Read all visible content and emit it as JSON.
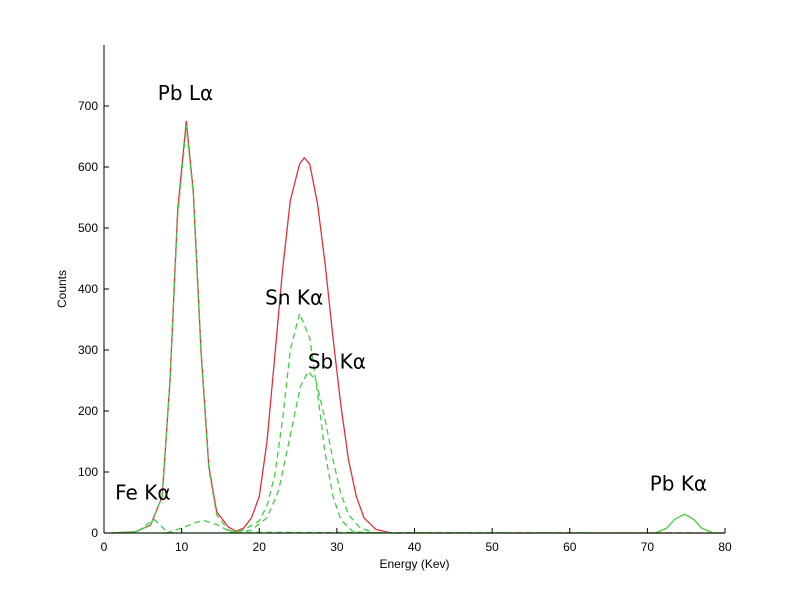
{
  "chart_data": {
    "type": "line",
    "title": "",
    "xlabel": "Energy (Kev)",
    "ylabel": "Counts",
    "xlim": [
      0,
      80
    ],
    "ylim": [
      0,
      800
    ],
    "x_ticks": [
      0,
      10,
      20,
      30,
      40,
      50,
      60,
      70,
      80
    ],
    "y_ticks": [
      0,
      100,
      200,
      300,
      400,
      500,
      600,
      700
    ],
    "grid": false,
    "series": [
      {
        "style": "solid",
        "color": "#e0303a",
        "points": [
          [
            1,
            0
          ],
          [
            4,
            2
          ],
          [
            6,
            13
          ],
          [
            7.5,
            60
          ],
          [
            8.5,
            250
          ],
          [
            9.5,
            530
          ],
          [
            10.6,
            675
          ],
          [
            11.5,
            560
          ],
          [
            12.5,
            300
          ],
          [
            13.5,
            110
          ],
          [
            14.5,
            35
          ],
          [
            16,
            10
          ],
          [
            17,
            3
          ],
          [
            18,
            8
          ],
          [
            19,
            25
          ],
          [
            20,
            60
          ],
          [
            21,
            150
          ],
          [
            22,
            290
          ],
          [
            23,
            430
          ],
          [
            24,
            545
          ],
          [
            25.2,
            605
          ],
          [
            25.8,
            615
          ],
          [
            26.5,
            605
          ],
          [
            27.5,
            540
          ],
          [
            28.5,
            440
          ],
          [
            29.5,
            320
          ],
          [
            30.5,
            210
          ],
          [
            31.5,
            120
          ],
          [
            32.5,
            60
          ],
          [
            33.5,
            25
          ],
          [
            35,
            6
          ],
          [
            37,
            0
          ],
          [
            80,
            0
          ]
        ]
      },
      {
        "style": "dashed",
        "color": "#44cc44",
        "points": [
          [
            1,
            0
          ],
          [
            4,
            2
          ],
          [
            6,
            13
          ],
          [
            7.5,
            60
          ],
          [
            8.5,
            250
          ],
          [
            9.5,
            520
          ],
          [
            10.6,
            667
          ],
          [
            11.5,
            555
          ],
          [
            12.5,
            295
          ],
          [
            13.5,
            105
          ],
          [
            14.5,
            30
          ],
          [
            16,
            5
          ],
          [
            17,
            1
          ],
          [
            80,
            0
          ]
        ]
      },
      {
        "style": "dashed",
        "color": "#44cc44",
        "points": [
          [
            3,
            0
          ],
          [
            4.5,
            4
          ],
          [
            5.5,
            14
          ],
          [
            6.5,
            22
          ],
          [
            7.3,
            12
          ],
          [
            8.2,
            1
          ],
          [
            9,
            0
          ]
        ]
      },
      {
        "style": "dashed",
        "color": "#44cc44",
        "points": [
          [
            8,
            0
          ],
          [
            10,
            8
          ],
          [
            12,
            18
          ],
          [
            13,
            20
          ],
          [
            14.5,
            14
          ],
          [
            16,
            4
          ],
          [
            17.5,
            0
          ]
        ]
      },
      {
        "style": "dashed",
        "color": "#44cc44",
        "points": [
          [
            16,
            0
          ],
          [
            18,
            5
          ],
          [
            20,
            20
          ],
          [
            21,
            45
          ],
          [
            22,
            95
          ],
          [
            23,
            185
          ],
          [
            24,
            300
          ],
          [
            25.2,
            360
          ],
          [
            26.5,
            320
          ],
          [
            27.5,
            230
          ],
          [
            28.5,
            130
          ],
          [
            29.5,
            60
          ],
          [
            30.5,
            22
          ],
          [
            32,
            3
          ],
          [
            34,
            0
          ]
        ]
      },
      {
        "style": "dashed",
        "color": "#44cc44",
        "points": [
          [
            17,
            0
          ],
          [
            19,
            5
          ],
          [
            21,
            25
          ],
          [
            22.5,
            70
          ],
          [
            24,
            160
          ],
          [
            25.3,
            240
          ],
          [
            26.3,
            265
          ],
          [
            27.3,
            250
          ],
          [
            28.5,
            185
          ],
          [
            29.5,
            120
          ],
          [
            30.5,
            65
          ],
          [
            31.5,
            30
          ],
          [
            33,
            8
          ],
          [
            35,
            0
          ]
        ]
      },
      {
        "style": "solid",
        "color": "#44cc44",
        "points": [
          [
            0,
            0
          ],
          [
            71,
            0
          ],
          [
            72.5,
            8
          ],
          [
            73.5,
            22
          ],
          [
            74.8,
            31
          ],
          [
            76,
            22
          ],
          [
            77,
            8
          ],
          [
            78.5,
            0
          ],
          [
            80,
            0
          ]
        ]
      }
    ],
    "annotations": [
      {
        "text": "Pb Lα",
        "x": 10.5,
        "y": 710
      },
      {
        "text": "Sn Kα",
        "x": 24.5,
        "y": 375
      },
      {
        "text": "Sb Kα",
        "x": 30,
        "y": 270
      },
      {
        "text": "Fe Kα",
        "x": 5,
        "y": 55
      },
      {
        "text": "Pb Kα",
        "x": 74,
        "y": 70
      }
    ]
  }
}
